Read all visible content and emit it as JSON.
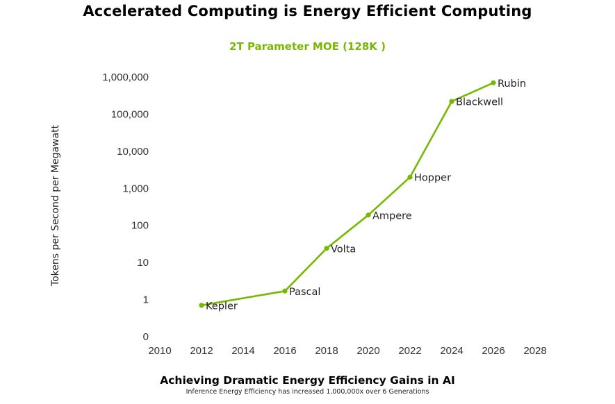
{
  "header": {
    "title": "Accelerated Computing is Energy Efficient Computing",
    "subtitle": "2T Parameter MOE (128K )"
  },
  "footer": {
    "title": "Achieving Dramatic Energy Efficiency Gains in AI",
    "subtitle": "Inference Energy Efficiency has increased 1,000,000x over 6 Generations"
  },
  "colors": {
    "line": "#76b900",
    "subtitle": "#76b900"
  },
  "chart_data": {
    "type": "line",
    "title": "2T Parameter MOE (128K )",
    "xlabel": "",
    "ylabel": "Tokens per Second per Megawatt",
    "yscale": "log",
    "xlim": [
      2010,
      2028
    ],
    "ylim": [
      0.1,
      1000000
    ],
    "grid": false,
    "legend": "none",
    "x_ticks": [
      2010,
      2012,
      2014,
      2016,
      2018,
      2020,
      2022,
      2024,
      2026,
      2028
    ],
    "x_tick_labels": [
      "2010",
      "2012",
      "2014",
      "2016",
      "2018",
      "2020",
      "2022",
      "2024",
      "2026",
      "2028"
    ],
    "y_ticks": [
      0.1,
      1,
      10,
      100,
      1000,
      10000,
      100000,
      1000000
    ],
    "y_tick_labels": [
      "0",
      "1",
      "10",
      "100",
      "1,000",
      "10,000",
      "100,000",
      "1,000,000"
    ],
    "series": [
      {
        "points": [
          {
            "x": 2012,
            "y": 0.7,
            "label": "Kepler"
          },
          {
            "x": 2016,
            "y": 1.7,
            "label": "Pascal"
          },
          {
            "x": 2018,
            "y": 24,
            "label": "Volta"
          },
          {
            "x": 2020,
            "y": 190,
            "label": "Ampere"
          },
          {
            "x": 2022,
            "y": 2000,
            "label": "Hopper"
          },
          {
            "x": 2024,
            "y": 220000,
            "label": "Blackwell"
          },
          {
            "x": 2026,
            "y": 700000,
            "label": "Rubin"
          }
        ]
      }
    ]
  }
}
